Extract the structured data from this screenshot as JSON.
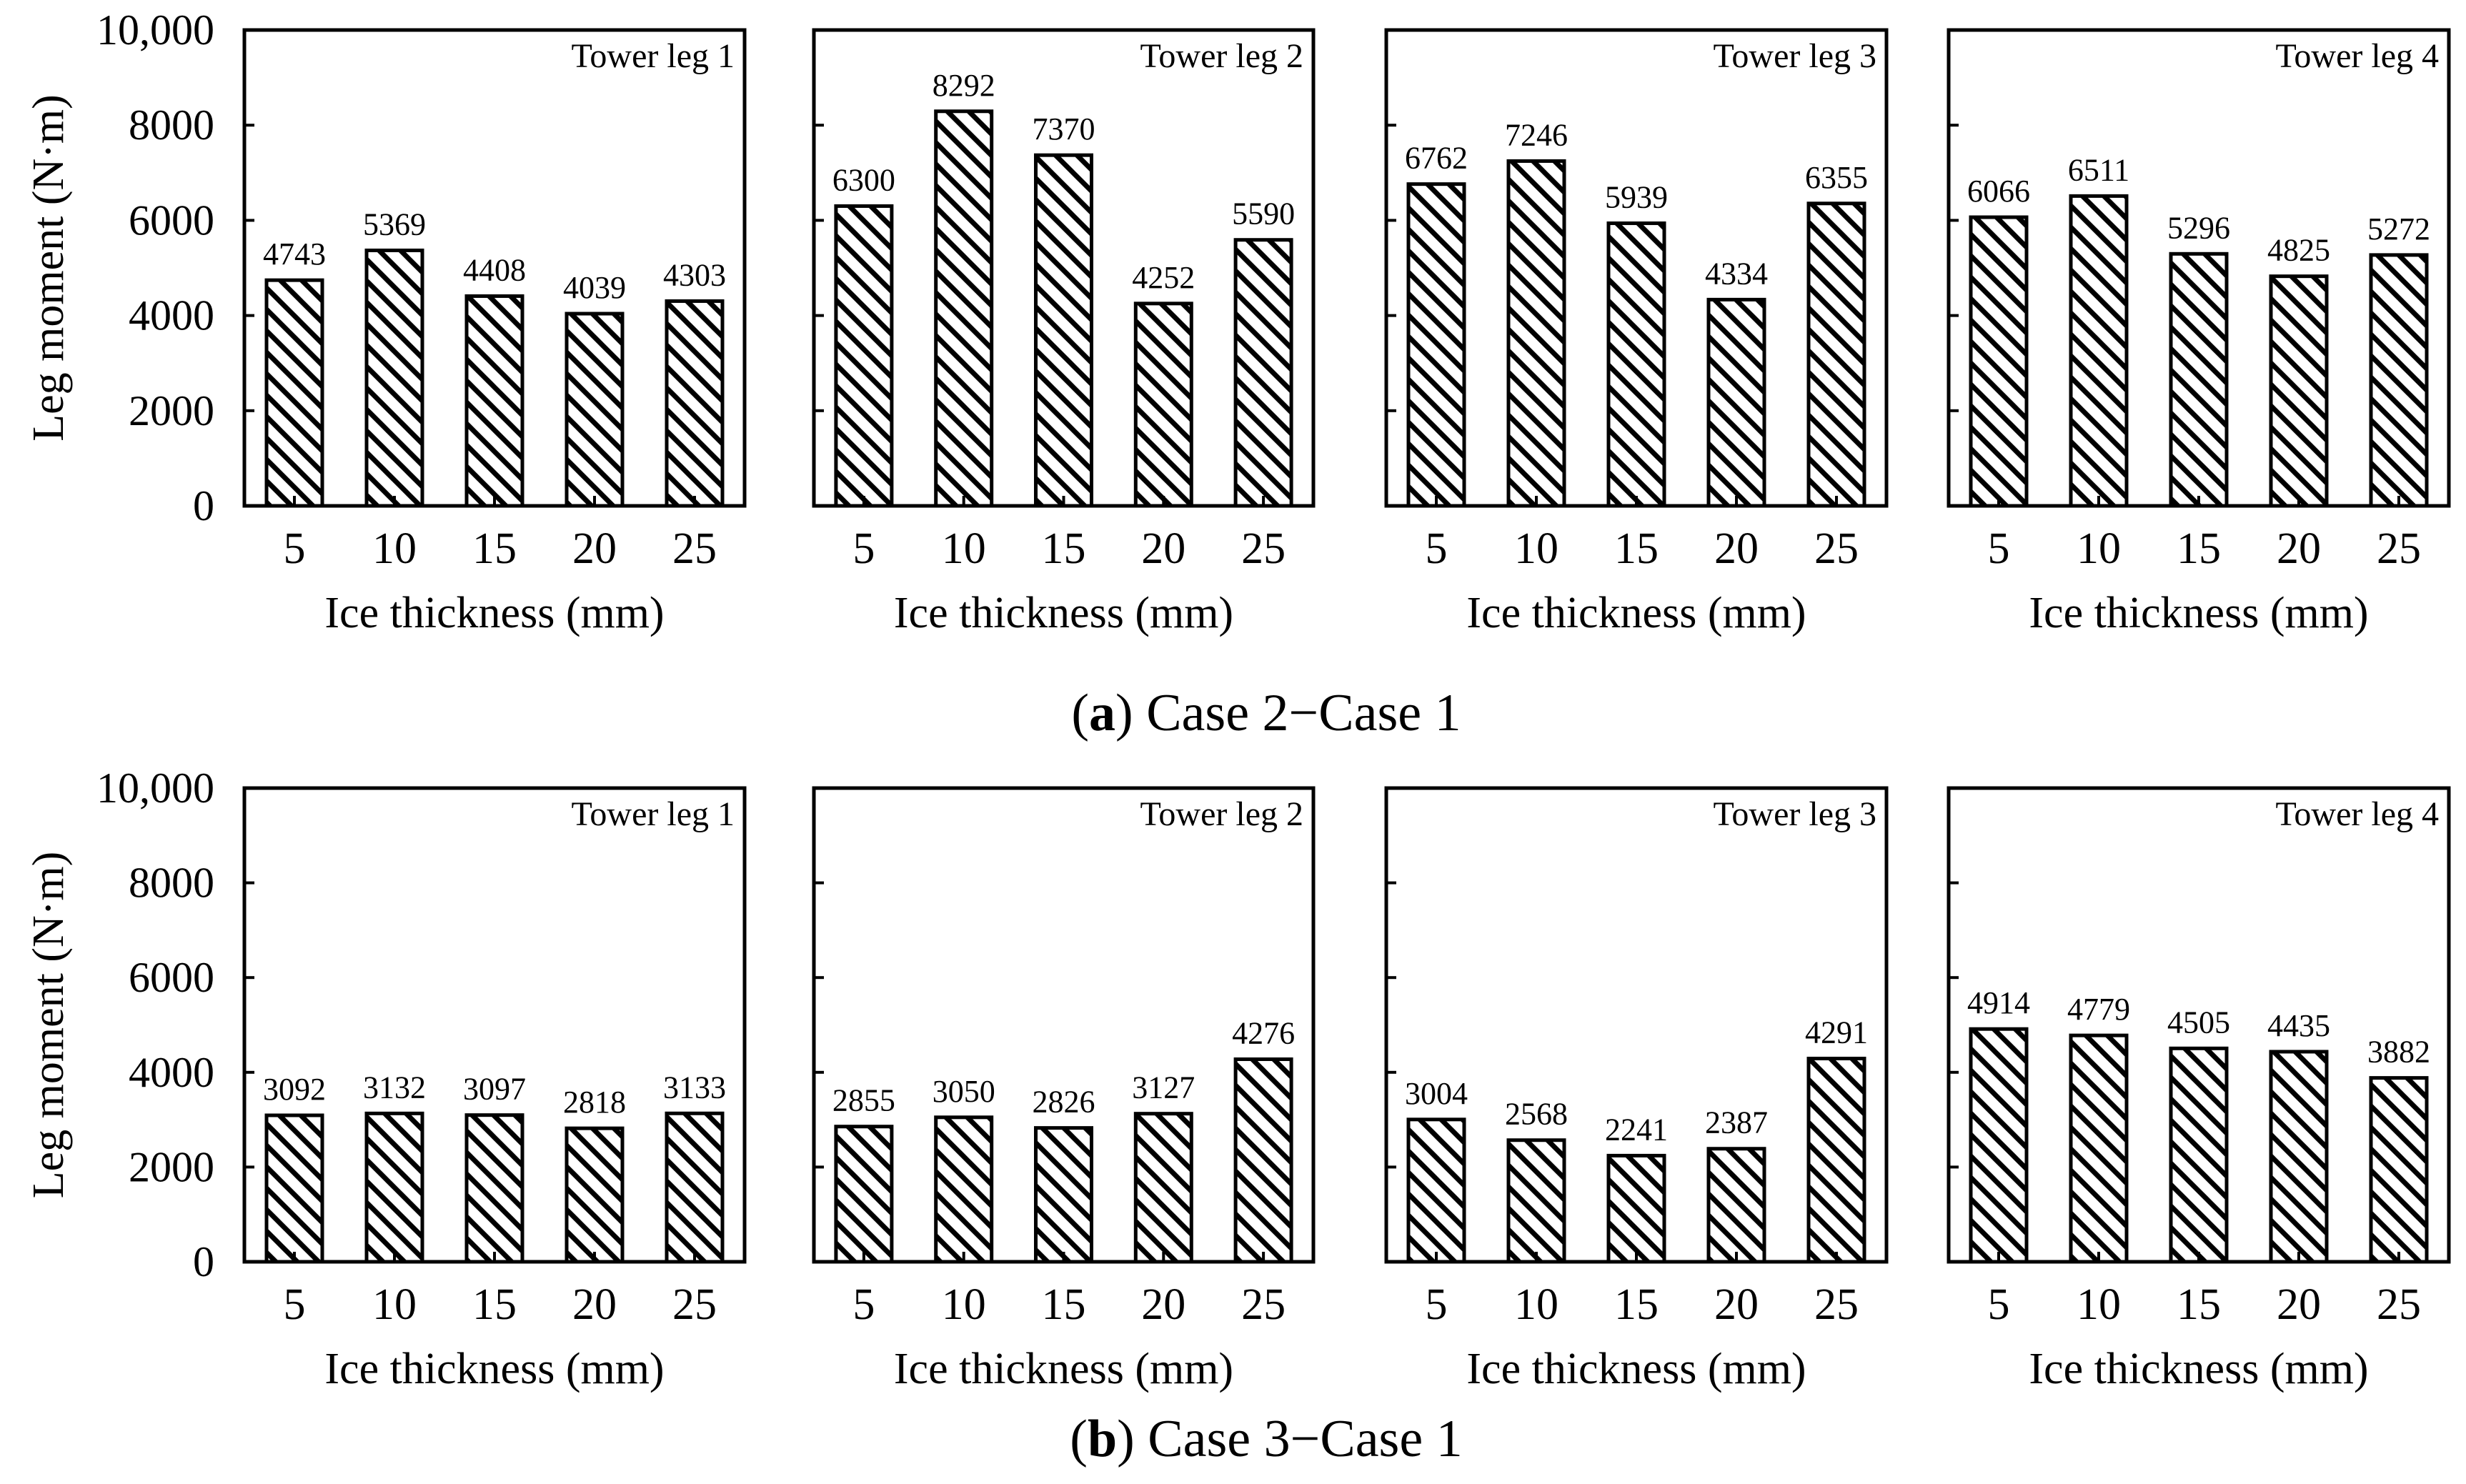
{
  "figure": {
    "rows": [
      {
        "caption_letter": "a",
        "caption_text": " Case 2−Case 1",
        "ylabel": "Leg moment (N·m)",
        "y_tick_labels": [
          "0",
          "2000",
          "4000",
          "6000",
          "8000",
          "10,000"
        ]
      },
      {
        "caption_letter": "b",
        "caption_text": " Case 3−Case 1",
        "ylabel": "Leg moment (N·m)",
        "y_tick_labels": [
          "0",
          "2000",
          "4000",
          "6000",
          "8000",
          "10,000"
        ]
      }
    ]
  },
  "chart_data": [
    {
      "type": "bar",
      "row": 0,
      "title": "Tower leg 1",
      "xlabel": "Ice thickness (mm)",
      "ylabel": "Leg moment (N·m)",
      "categories": [
        "5",
        "10",
        "15",
        "20",
        "25"
      ],
      "values": [
        4743,
        5369,
        4408,
        4039,
        4303
      ],
      "ylim": [
        0,
        10000
      ]
    },
    {
      "type": "bar",
      "row": 0,
      "title": "Tower leg 2",
      "xlabel": "Ice thickness (mm)",
      "ylabel": "Leg moment (N·m)",
      "categories": [
        "5",
        "10",
        "15",
        "20",
        "25"
      ],
      "values": [
        6300,
        8292,
        7370,
        4252,
        5590
      ],
      "ylim": [
        0,
        10000
      ]
    },
    {
      "type": "bar",
      "row": 0,
      "title": "Tower leg 3",
      "xlabel": "Ice thickness (mm)",
      "ylabel": "Leg moment (N·m)",
      "categories": [
        "5",
        "10",
        "15",
        "20",
        "25"
      ],
      "values": [
        6762,
        7246,
        5939,
        4334,
        6355
      ],
      "ylim": [
        0,
        10000
      ]
    },
    {
      "type": "bar",
      "row": 0,
      "title": "Tower leg 4",
      "xlabel": "Ice thickness (mm)",
      "ylabel": "Leg moment (N·m)",
      "categories": [
        "5",
        "10",
        "15",
        "20",
        "25"
      ],
      "values": [
        6066,
        6511,
        5296,
        4825,
        5272
      ],
      "ylim": [
        0,
        10000
      ]
    },
    {
      "type": "bar",
      "row": 1,
      "title": "Tower leg 1",
      "xlabel": "Ice thickness (mm)",
      "ylabel": "Leg moment (N·m)",
      "categories": [
        "5",
        "10",
        "15",
        "20",
        "25"
      ],
      "values": [
        3092,
        3132,
        3097,
        2818,
        3133
      ],
      "ylim": [
        0,
        10000
      ]
    },
    {
      "type": "bar",
      "row": 1,
      "title": "Tower leg 2",
      "xlabel": "Ice thickness (mm)",
      "ylabel": "Leg moment (N·m)",
      "categories": [
        "5",
        "10",
        "15",
        "20",
        "25"
      ],
      "values": [
        2855,
        3050,
        2826,
        3127,
        4276
      ],
      "ylim": [
        0,
        10000
      ]
    },
    {
      "type": "bar",
      "row": 1,
      "title": "Tower leg 3",
      "xlabel": "Ice thickness (mm)",
      "ylabel": "Leg moment (N·m)",
      "categories": [
        "5",
        "10",
        "15",
        "20",
        "25"
      ],
      "values": [
        3004,
        2568,
        2241,
        2387,
        4291
      ],
      "ylim": [
        0,
        10000
      ]
    },
    {
      "type": "bar",
      "row": 1,
      "title": "Tower leg 4",
      "xlabel": "Ice thickness (mm)",
      "ylabel": "Leg moment (N·m)",
      "categories": [
        "5",
        "10",
        "15",
        "20",
        "25"
      ],
      "values": [
        4914,
        4779,
        4505,
        4435,
        3882
      ],
      "ylim": [
        0,
        10000
      ]
    }
  ]
}
